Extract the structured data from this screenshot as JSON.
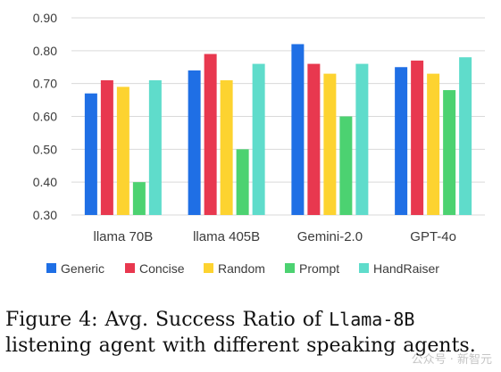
{
  "chart_data": {
    "type": "bar",
    "categories": [
      "llama 70B",
      "llama 405B",
      "Gemini-2.0",
      "GPT-4o"
    ],
    "series": [
      {
        "name": "Generic",
        "color": "#1f6fe5",
        "values": [
          0.67,
          0.74,
          0.82,
          0.75
        ]
      },
      {
        "name": "Concise",
        "color": "#e8384f",
        "values": [
          0.71,
          0.79,
          0.76,
          0.77
        ]
      },
      {
        "name": "Random",
        "color": "#fdd330",
        "values": [
          0.69,
          0.71,
          0.73,
          0.73
        ]
      },
      {
        "name": "Prompt",
        "color": "#4cd271",
        "values": [
          0.4,
          0.5,
          0.6,
          0.68
        ]
      },
      {
        "name": "HandRaiser",
        "color": "#5fdccb",
        "values": [
          0.71,
          0.76,
          0.76,
          0.78
        ]
      }
    ],
    "yticks": [
      "0.30",
      "0.40",
      "0.50",
      "0.60",
      "0.70",
      "0.80",
      "0.90"
    ],
    "ylim": [
      0.3,
      0.9
    ],
    "grid": true,
    "legend": "bottom",
    "title": "",
    "xlabel": "",
    "ylabel": ""
  },
  "caption": {
    "prefix": "Figure 4:  Avg. Success Ratio of ",
    "model": "Llama-8B",
    "suffix": " listening agent with different speaking agents."
  },
  "watermark": "公众号 · 新智元"
}
